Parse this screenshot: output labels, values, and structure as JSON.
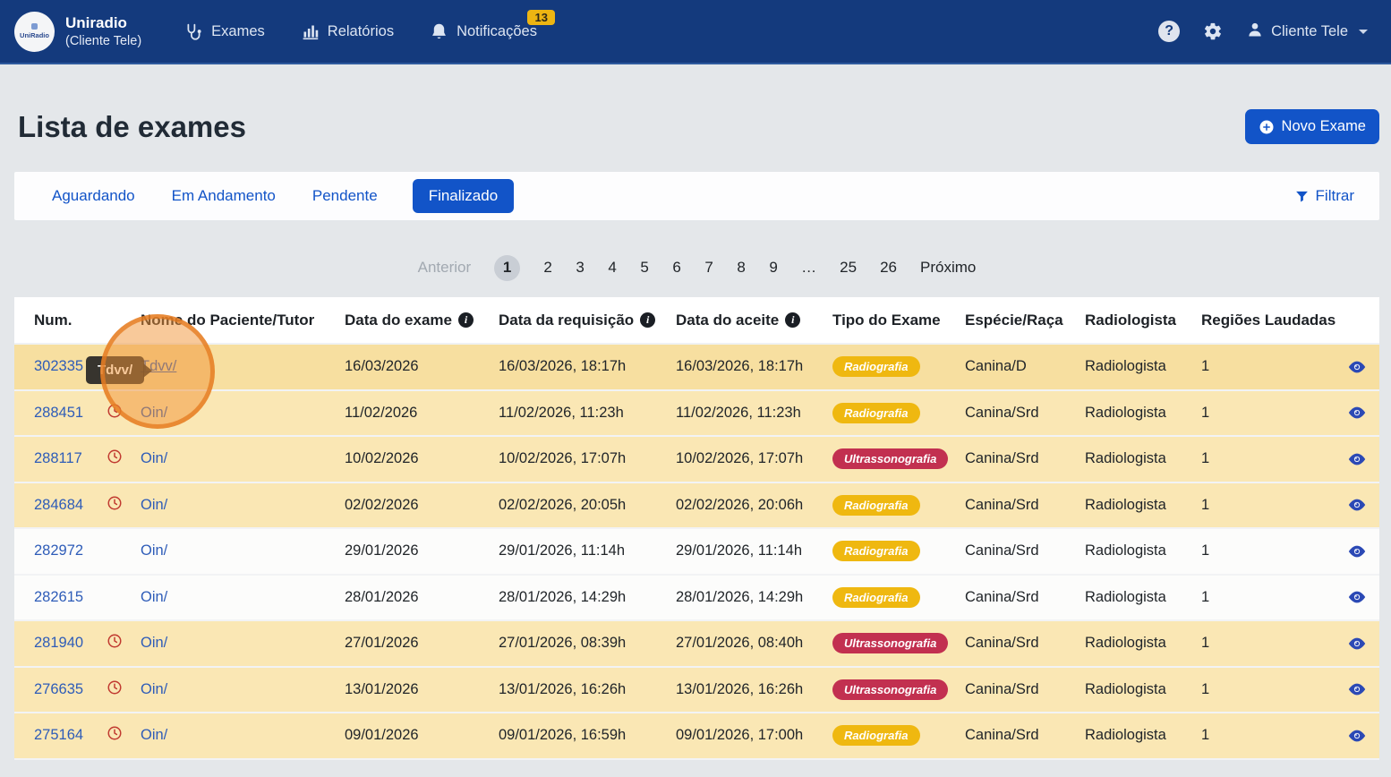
{
  "navbar": {
    "brand": {
      "name": "Uniradio",
      "subtitle": "(Cliente Tele)",
      "logo_text": "UniRadio"
    },
    "items": [
      {
        "label": "Exames",
        "icon": "stethoscope-icon"
      },
      {
        "label": "Relatórios",
        "icon": "bar-chart-icon"
      },
      {
        "label": "Notificações",
        "icon": "bell-icon",
        "badge": "13"
      }
    ],
    "user_label": "Cliente Tele"
  },
  "page": {
    "title": "Lista de exames",
    "new_exam_button": "Novo Exame",
    "filter_button": "Filtrar"
  },
  "tabs": [
    {
      "label": "Aguardando",
      "active": false
    },
    {
      "label": "Em Andamento",
      "active": false
    },
    {
      "label": "Pendente",
      "active": false
    },
    {
      "label": "Finalizado",
      "active": true
    }
  ],
  "pagination": {
    "prev": "Anterior",
    "next": "Próximo",
    "pages": [
      "1",
      "2",
      "3",
      "4",
      "5",
      "6",
      "7",
      "8",
      "9",
      "…",
      "25",
      "26"
    ],
    "active_page": "1"
  },
  "table": {
    "headers": [
      {
        "key": "num",
        "label": "Num.",
        "col": "c-num",
        "info": false
      },
      {
        "key": "late",
        "label": "",
        "col": "c-clock",
        "info": false
      },
      {
        "key": "patient",
        "label": "Nome do Paciente/Tutor",
        "col": "c-patient",
        "info": false
      },
      {
        "key": "exam-date",
        "label": "Data do exame",
        "col": "c-exam",
        "info": true
      },
      {
        "key": "request-date",
        "label": "Data da requisição",
        "col": "c-req",
        "info": true
      },
      {
        "key": "accept-date",
        "label": "Data do aceite",
        "col": "c-accept",
        "info": true
      },
      {
        "key": "exam-type",
        "label": "Tipo do Exame",
        "col": "c-type",
        "info": false
      },
      {
        "key": "species",
        "label": "Espécie/Raça",
        "col": "c-species",
        "info": false
      },
      {
        "key": "radiologist",
        "label": "Radiologista",
        "col": "c-radio",
        "info": false
      },
      {
        "key": "regions",
        "label": "Regiões Laudadas",
        "col": "c-regions",
        "info": false
      }
    ],
    "badge_colors": {
      "Radiografia": "#efb810",
      "Ultrassonografia": "#c23050"
    },
    "rows": [
      {
        "num": "302335",
        "late": false,
        "patient": "Tdvv/",
        "patient_hovered": true,
        "exam_date": "16/03/2026",
        "request_date": "16/03/2026, 18:17h",
        "accept_date": "16/03/2026, 18:17h",
        "type": "Radiografia",
        "species": "Canina/D",
        "radiologist": "Radiologista",
        "regions": "1",
        "highlight": "hover"
      },
      {
        "num": "288451",
        "late": true,
        "patient": "Oin/",
        "patient_hovered": false,
        "exam_date": "11/02/2026",
        "request_date": "11/02/2026, 11:23h",
        "accept_date": "11/02/2026, 11:23h",
        "type": "Radiografia",
        "species": "Canina/Srd",
        "radiologist": "Radiologista",
        "regions": "1",
        "highlight": "yellow"
      },
      {
        "num": "288117",
        "late": true,
        "patient": "Oin/",
        "patient_hovered": false,
        "exam_date": "10/02/2026",
        "request_date": "10/02/2026, 17:07h",
        "accept_date": "10/02/2026, 17:07h",
        "type": "Ultrassonografia",
        "species": "Canina/Srd",
        "radiologist": "Radiologista",
        "regions": "1",
        "highlight": "yellow"
      },
      {
        "num": "284684",
        "late": true,
        "patient": "Oin/",
        "patient_hovered": false,
        "exam_date": "02/02/2026",
        "request_date": "02/02/2026, 20:05h",
        "accept_date": "02/02/2026, 20:06h",
        "type": "Radiografia",
        "species": "Canina/Srd",
        "radiologist": "Radiologista",
        "regions": "1",
        "highlight": "yellow"
      },
      {
        "num": "282972",
        "late": false,
        "patient": "Oin/",
        "patient_hovered": false,
        "exam_date": "29/01/2026",
        "request_date": "29/01/2026, 11:14h",
        "accept_date": "29/01/2026, 11:14h",
        "type": "Radiografia",
        "species": "Canina/Srd",
        "radiologist": "Radiologista",
        "regions": "1",
        "highlight": "white"
      },
      {
        "num": "282615",
        "late": false,
        "patient": "Oin/",
        "patient_hovered": false,
        "exam_date": "28/01/2026",
        "request_date": "28/01/2026, 14:29h",
        "accept_date": "28/01/2026, 14:29h",
        "type": "Radiografia",
        "species": "Canina/Srd",
        "radiologist": "Radiologista",
        "regions": "1",
        "highlight": "white"
      },
      {
        "num": "281940",
        "late": true,
        "patient": "Oin/",
        "patient_hovered": false,
        "exam_date": "27/01/2026",
        "request_date": "27/01/2026, 08:39h",
        "accept_date": "27/01/2026, 08:40h",
        "type": "Ultrassonografia",
        "species": "Canina/Srd",
        "radiologist": "Radiologista",
        "regions": "1",
        "highlight": "yellow"
      },
      {
        "num": "276635",
        "late": true,
        "patient": "Oin/",
        "patient_hovered": false,
        "exam_date": "13/01/2026",
        "request_date": "13/01/2026, 16:26h",
        "accept_date": "13/01/2026, 16:26h",
        "type": "Ultrassonografia",
        "species": "Canina/Srd",
        "radiologist": "Radiologista",
        "regions": "1",
        "highlight": "yellow"
      },
      {
        "num": "275164",
        "late": true,
        "patient": "Oin/",
        "patient_hovered": false,
        "exam_date": "09/01/2026",
        "request_date": "09/01/2026, 16:59h",
        "accept_date": "09/01/2026, 17:00h",
        "type": "Radiografia",
        "species": "Canina/Srd",
        "radiologist": "Radiologista",
        "regions": "1",
        "highlight": "yellow"
      }
    ]
  },
  "tooltip": {
    "text": "Tdvv/"
  },
  "colors": {
    "navbar_bg": "#143a7d",
    "primary": "#1254c8",
    "link": "#2e5cb8",
    "row_hover": "#f7dfa0",
    "row_yellow": "#fae7b4",
    "badge_amber": "#efb810",
    "badge_red": "#c23050",
    "late_clock": "#c13a30",
    "notification_badge": "#edb512",
    "highlight_ring": "#e67b20"
  }
}
